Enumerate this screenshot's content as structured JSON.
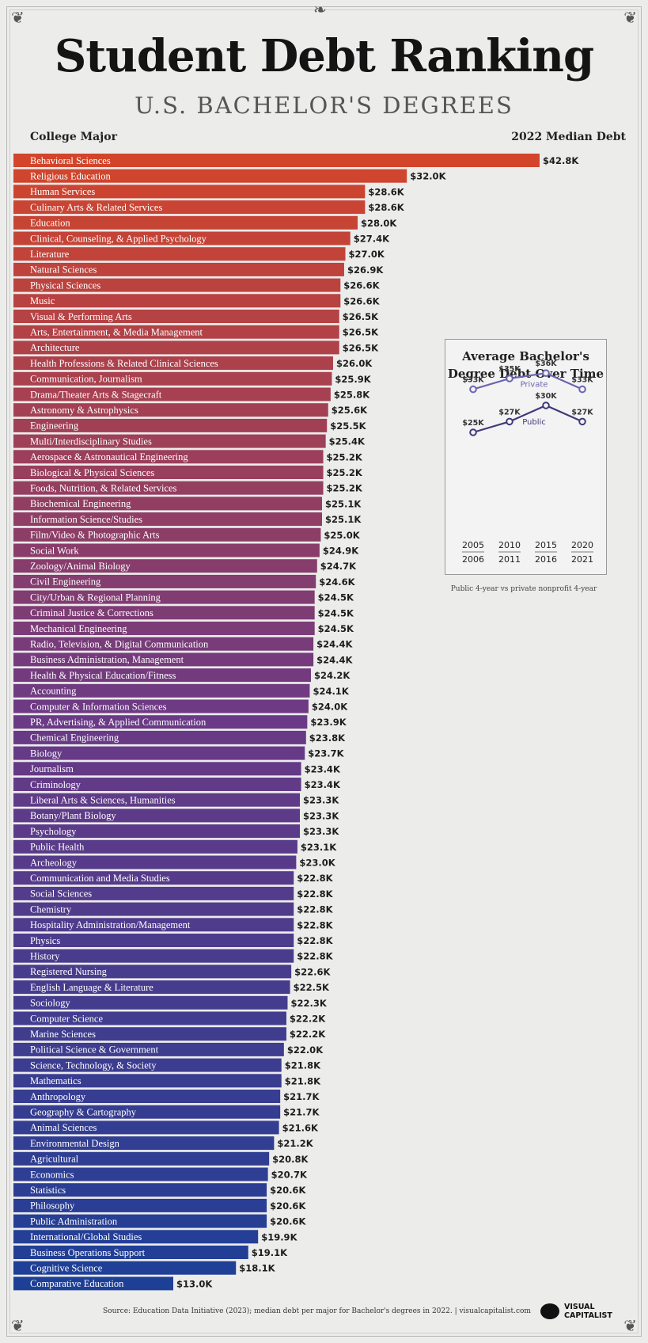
{
  "title": "Student Debt Ranking",
  "subtitle": "U.S. BACHELOR'S DEGREES",
  "column_left": "College Major",
  "column_right": "2022 Median Debt",
  "chart_data": [
    {
      "type": "bar",
      "orientation": "horizontal",
      "xlabel": "2022 Median Debt",
      "ylabel": "College Major",
      "color_top": "#d2452a",
      "color_mid": "#6a3a86",
      "color_bottom": "#1e3f96",
      "categories": [
        "Behavioral Sciences",
        "Religious Education",
        "Human Services",
        "Culinary Arts & Related Services",
        "Education",
        "Clinical, Counseling, & Applied Psychology",
        "Literature",
        "Natural Sciences",
        "Physical Sciences",
        "Music",
        "Visual & Performing Arts",
        "Arts, Entertainment, & Media Management",
        "Architecture",
        "Health Professions & Related Clinical Sciences",
        "Communication, Journalism",
        "Drama/Theater Arts & Stagecraft",
        "Astronomy & Astrophysics",
        "Engineering",
        "Multi/Interdisciplinary Studies",
        "Aerospace & Astronautical Engineering",
        "Biological & Physical Sciences",
        "Foods, Nutrition, & Related Services",
        "Biochemical Engineering",
        "Information Science/Studies",
        "Film/Video & Photographic Arts",
        "Social Work",
        "Zoology/Animal Biology",
        "Civil Engineering",
        "City/Urban & Regional Planning",
        "Criminal Justice & Corrections",
        "Mechanical Engineering",
        "Radio, Television, & Digital Communication",
        "Business Administration, Management",
        "Health & Physical Education/Fitness",
        "Accounting",
        "Computer & Information Sciences",
        "PR, Advertising, & Applied Communication",
        "Chemical Engineering",
        "Biology",
        "Journalism",
        "Criminology",
        "Liberal Arts & Sciences, Humanities",
        "Botany/Plant Biology",
        "Psychology",
        "Public Health",
        "Archeology",
        "Communication and Media Studies",
        "Social Sciences",
        "Chemistry",
        "Hospitality Administration/Management",
        "Physics",
        "History",
        "Registered Nursing",
        "English Language & Literature",
        "Sociology",
        "Computer Science",
        "Marine Sciences",
        "Political Science & Government",
        "Science, Technology, & Society",
        "Mathematics",
        "Anthropology",
        "Geography & Cartography",
        "Animal Sciences",
        "Environmental Design",
        "Agricultural",
        "Economics",
        "Statistics",
        "Philosophy",
        "Public Administration",
        "International/Global Studies",
        "Business Operations Support",
        "Cognitive Science",
        "Comparative Education"
      ],
      "values": [
        42.8,
        32.0,
        28.6,
        28.6,
        28.0,
        27.4,
        27.0,
        26.9,
        26.6,
        26.6,
        26.5,
        26.5,
        26.5,
        26.0,
        25.9,
        25.8,
        25.6,
        25.5,
        25.4,
        25.2,
        25.2,
        25.2,
        25.1,
        25.1,
        25.0,
        24.9,
        24.7,
        24.6,
        24.5,
        24.5,
        24.5,
        24.4,
        24.4,
        24.2,
        24.1,
        24.0,
        23.9,
        23.8,
        23.7,
        23.4,
        23.4,
        23.3,
        23.3,
        23.3,
        23.1,
        23.0,
        22.8,
        22.8,
        22.8,
        22.8,
        22.8,
        22.8,
        22.6,
        22.5,
        22.3,
        22.2,
        22.2,
        22.0,
        21.8,
        21.8,
        21.7,
        21.7,
        21.6,
        21.2,
        20.8,
        20.7,
        20.6,
        20.6,
        20.6,
        19.9,
        19.1,
        18.1,
        13.0
      ],
      "value_labels": [
        "$42.8K",
        "$32.0K",
        "$28.6K",
        "$28.6K",
        "$28.0K",
        "$27.4K",
        "$27.0K",
        "$26.9K",
        "$26.6K",
        "$26.6K",
        "$26.5K",
        "$26.5K",
        "$26.5K",
        "$26.0K",
        "$25.9K",
        "$25.8K",
        "$25.6K",
        "$25.5K",
        "$25.4K",
        "$25.2K",
        "$25.2K",
        "$25.2K",
        "$25.1K",
        "$25.1K",
        "$25.0K",
        "$24.9K",
        "$24.7K",
        "$24.6K",
        "$24.5K",
        "$24.5K",
        "$24.5K",
        "$24.4K",
        "$24.4K",
        "$24.2K",
        "$24.1K",
        "$24.0K",
        "$23.9K",
        "$23.8K",
        "$23.7K",
        "$23.4K",
        "$23.4K",
        "$23.3K",
        "$23.3K",
        "$23.3K",
        "$23.1K",
        "$23.0K",
        "$22.8K",
        "$22.8K",
        "$22.8K",
        "$22.8K",
        "$22.8K",
        "$22.8K",
        "$22.6K",
        "$22.5K",
        "$22.3K",
        "$22.2K",
        "$22.2K",
        "$22.0K",
        "$21.8K",
        "$21.8K",
        "$21.7K",
        "$21.7K",
        "$21.6K",
        "$21.2K",
        "$20.8K",
        "$20.7K",
        "$20.6K",
        "$20.6K",
        "$20.6K",
        "$19.9K",
        "$19.1K",
        "$18.1K",
        "$13.0K"
      ]
    },
    {
      "type": "line",
      "title": "Average Bachelor's Degree Debt Over Time",
      "note": "Public 4-year vs private nonprofit 4-year",
      "x": [
        "2005 2006",
        "2010 2011",
        "2015 2016",
        "2020 2021"
      ],
      "x_top": [
        "2005",
        "2010",
        "2015",
        "2020"
      ],
      "x_bottom": [
        "2006",
        "2011",
        "2016",
        "2021"
      ],
      "series": [
        {
          "name": "Private",
          "values": [
            33,
            35,
            36,
            33
          ],
          "labels": [
            "$33K",
            "$35K",
            "$36K",
            "$33K"
          ],
          "color": "#6b64b0"
        },
        {
          "name": "Public",
          "values": [
            25,
            27,
            30,
            27
          ],
          "labels": [
            "$25K",
            "$27K",
            "$30K",
            "$27K"
          ],
          "color": "#3f3a7a"
        }
      ]
    }
  ],
  "footer": {
    "source": "Source: Education Data Initiative (2023); median debt per major for Bachelor's degrees in 2022.  |  visualcapitalist.com",
    "logo_line1": "VISUAL",
    "logo_line2": "CAPITALIST"
  }
}
